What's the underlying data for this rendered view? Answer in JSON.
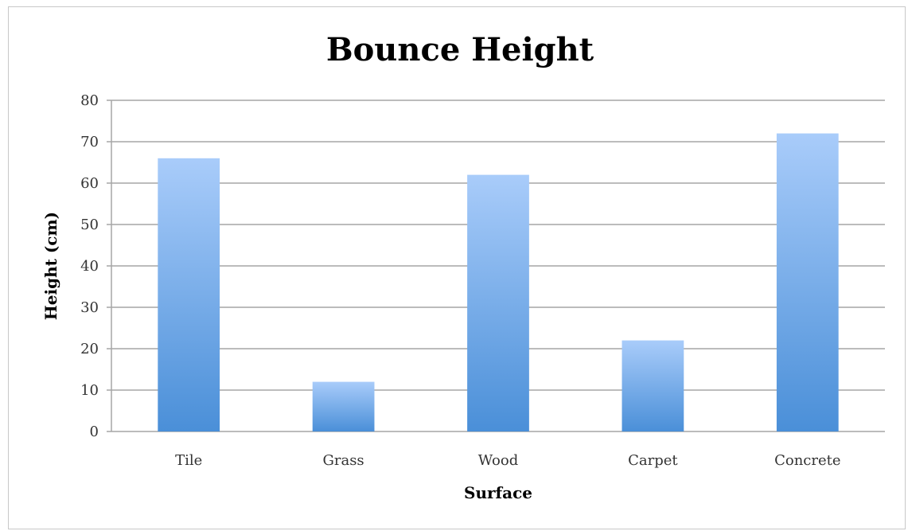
{
  "chart_data": {
    "type": "bar",
    "title": "Bounce Height",
    "xlabel": "Surface",
    "ylabel": "Height (cm)",
    "categories": [
      "Tile",
      "Grass",
      "Wood",
      "Carpet",
      "Concrete"
    ],
    "values": [
      66,
      12,
      62,
      22,
      72
    ],
    "ylim": [
      0,
      80
    ],
    "yticks": [
      0,
      10,
      20,
      30,
      40,
      50,
      60,
      70,
      80
    ],
    "grid": true,
    "legend": "none",
    "colors": {
      "bar_top": "#a9ccfa",
      "bar_bottom": "#4a8fd8",
      "grid": "#a6a6a6"
    }
  }
}
